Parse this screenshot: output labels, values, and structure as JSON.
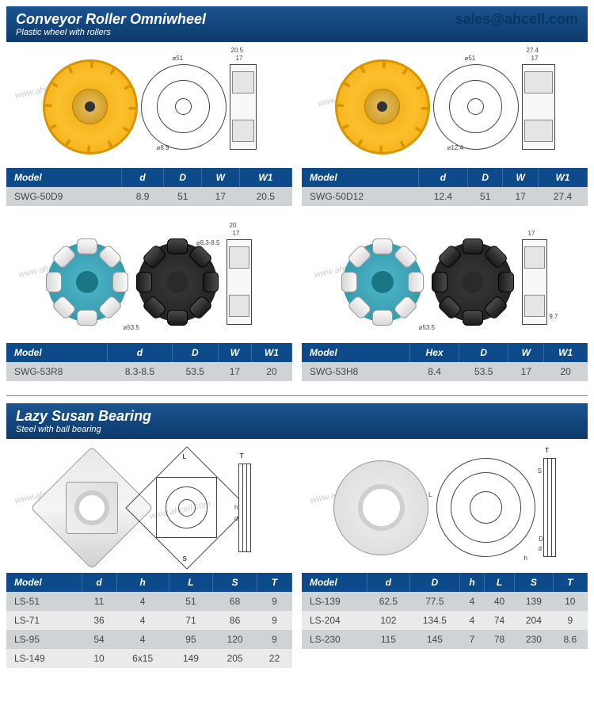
{
  "email": "sales@ahcell.com",
  "watermark": "www.ahcell.com",
  "section1": {
    "title": "Conveyor Roller Omniwheel",
    "subtitle": "Plastic wheel with rollers"
  },
  "section2": {
    "title": "Lazy Susan Bearing",
    "subtitle": "Steel with ball bearing"
  },
  "t1": {
    "headers": [
      "Model",
      "d",
      "D",
      "W",
      "W1"
    ],
    "rows": [
      [
        "SWG-50D9",
        "8.9",
        "51",
        "17",
        "20.5"
      ]
    ]
  },
  "t2": {
    "headers": [
      "Model",
      "d",
      "D",
      "W",
      "W1"
    ],
    "rows": [
      [
        "SWG-50D12",
        "12.4",
        "51",
        "17",
        "27.4"
      ]
    ]
  },
  "t3": {
    "headers": [
      "Model",
      "d",
      "D",
      "W",
      "W1"
    ],
    "rows": [
      [
        "SWG-53R8",
        "8.3-8.5",
        "53.5",
        "17",
        "20"
      ]
    ]
  },
  "t4": {
    "headers": [
      "Model",
      "Hex",
      "D",
      "W",
      "W1"
    ],
    "rows": [
      [
        "SWG-53H8",
        "8.4",
        "53.5",
        "17",
        "20"
      ]
    ]
  },
  "t5": {
    "headers": [
      "Model",
      "d",
      "h",
      "L",
      "S",
      "T"
    ],
    "rows": [
      [
        "LS-51",
        "11",
        "4",
        "51",
        "68",
        "9"
      ],
      [
        "LS-71",
        "36",
        "4",
        "71",
        "86",
        "9"
      ],
      [
        "LS-95",
        "54",
        "4",
        "95",
        "120",
        "9"
      ],
      [
        "LS-149",
        "10",
        "6x15",
        "149",
        "205",
        "22"
      ]
    ]
  },
  "t6": {
    "headers": [
      "Model",
      "d",
      "D",
      "h",
      "L",
      "S",
      "T"
    ],
    "rows": [
      [
        "LS-139",
        "62.5",
        "77.5",
        "4",
        "40",
        "139",
        "10"
      ],
      [
        "LS-204",
        "102",
        "134.5",
        "4",
        "74",
        "204",
        "9"
      ],
      [
        "LS-230",
        "115",
        "145",
        "7",
        "78",
        "230",
        "8.6"
      ]
    ]
  },
  "dims": {
    "d51": "⌀51",
    "d89": "⌀8.9",
    "w205": "20.5",
    "w17": "17",
    "d124": "⌀12.4",
    "w274": "27.4",
    "d535": "⌀53.5",
    "d8385": "⌀8.3-8.5",
    "w20": "20",
    "h97": "9.7",
    "lblL": "L",
    "lblS": "S",
    "lblT": "T",
    "lblh": "h",
    "lbld": "d",
    "lblD": "D"
  }
}
